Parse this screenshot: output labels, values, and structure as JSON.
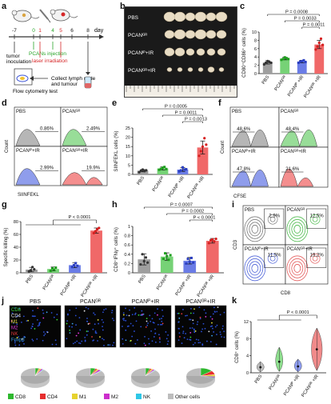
{
  "panel_labels": [
    "a",
    "b",
    "c",
    "d",
    "e",
    "f",
    "g",
    "h",
    "i",
    "j",
    "k"
  ],
  "panel_a": {
    "day_label": "day",
    "ticks": [
      "-7",
      "0",
      "1",
      "4",
      "5",
      "6",
      "8"
    ],
    "tumor_inoculation": "tumor\ninoculation",
    "pcans_injection": "PCANs injection",
    "laser_irradiation": "laser irradiation",
    "flow_test": "Flow cytometry test",
    "collect_text": "Collect lymph node\nand tumour",
    "colors": {
      "green": "#2aa52a",
      "red": "#d62728"
    }
  },
  "panel_b": {
    "rows": [
      "PBS",
      "PCANᴳᴿ",
      "PCANᴵᴾ+IR",
      "PCANᴳᴿ+IR"
    ]
  },
  "chart_data": [
    {
      "id": "c",
      "type": "bar",
      "ylabel": "CD80⁺CD86⁺ cells (%)",
      "ylim": [
        0,
        10
      ],
      "yticks": [
        0,
        2,
        4,
        6,
        8,
        10
      ],
      "categories": [
        "PBS",
        "PCANᴳᴿ",
        "PCANᴵᴾ +IR",
        "PCANᴳᴿ +IR"
      ],
      "values": [
        2.7,
        3.6,
        2.9,
        7.0
      ],
      "errors": [
        0.4,
        0.3,
        0.3,
        1.0
      ],
      "colors": [
        "#9e9e9e",
        "#76d276",
        "#6a7ce6",
        "#f06868"
      ],
      "points": [
        [
          2.2,
          2.6,
          3.0,
          2.8,
          2.6
        ],
        [
          3.3,
          3.5,
          3.9,
          3.7,
          3.5
        ],
        [
          2.6,
          2.9,
          3.0,
          3.2,
          2.8
        ],
        [
          5.8,
          6.5,
          7.4,
          8.4,
          6.9
        ]
      ],
      "pvalues": [
        {
          "text": "P = 0.0008",
          "from": 0,
          "to": 3
        },
        {
          "text": "P = 0.0033",
          "from": 1,
          "to": 3
        },
        {
          "text": "P = 0.0011",
          "from": 2,
          "to": 3
        }
      ]
    },
    {
      "id": "e",
      "type": "bar",
      "ylabel": "SIINFEKL cells (%)",
      "ylim": [
        0,
        25
      ],
      "yticks": [
        0,
        5,
        10,
        15,
        20,
        25
      ],
      "categories": [
        "PBS",
        "PCANᴳᴿ",
        "PCANᴵᴾ +IR",
        "PCANᴳᴿ +IR"
      ],
      "values": [
        2.0,
        3.2,
        2.6,
        14.5
      ],
      "errors": [
        0.6,
        0.8,
        1.0,
        3.5
      ],
      "colors": [
        "#9e9e9e",
        "#76d276",
        "#6a7ce6",
        "#f06868"
      ],
      "points": [
        [
          1.2,
          2.0,
          2.6,
          1.8,
          2.2
        ],
        [
          2.5,
          3.0,
          3.6,
          4.0,
          2.9
        ],
        [
          1.6,
          2.2,
          3.8,
          2.6,
          2.8
        ],
        [
          10.0,
          12.5,
          15.0,
          19.5,
          16.0
        ]
      ],
      "pvalues": [
        {
          "text": "P = 0.0005",
          "from": 0,
          "to": 3
        },
        {
          "text": "P = 0.0011",
          "from": 1,
          "to": 3
        },
        {
          "text": "P = 0.0013",
          "from": 2,
          "to": 3
        }
      ]
    },
    {
      "id": "g",
      "type": "bar",
      "ylabel": "Specific killing (%)",
      "ylim": [
        0,
        80
      ],
      "yticks": [
        0,
        20,
        40,
        60,
        80
      ],
      "categories": [
        "PBS",
        "PCANᴳᴿ",
        "PCANᴵᴾ +IR",
        "PCANᴳᴿ +IR"
      ],
      "values": [
        5.0,
        6.0,
        12.0,
        66.0
      ],
      "errors": [
        3.5,
        3.0,
        4.0,
        4.0
      ],
      "colors": [
        "#9e9e9e",
        "#76d276",
        "#6a7ce6",
        "#f06868"
      ],
      "points": [
        [
          2.0,
          4.0,
          9.0,
          5.5
        ],
        [
          3.0,
          7.0,
          5.0,
          8.0
        ],
        [
          9.0,
          12.0,
          15.0,
          11.0
        ],
        [
          62.0,
          65.0,
          68.0,
          70.0
        ]
      ],
      "pvalues": [
        {
          "text": "P < 0.0001",
          "from": 0,
          "to": 3,
          "group": true
        }
      ]
    },
    {
      "id": "h",
      "type": "bar",
      "ylabel": "CD8⁺IFNγ⁺ cells (%)",
      "ylim": [
        0,
        1.0
      ],
      "yticks": [
        0,
        0.2,
        0.4,
        0.6,
        0.8,
        1.0
      ],
      "categories": [
        "PBS",
        "PCANᴳᴿ",
        "PCANᴵᴾ +IR",
        "PCANᴳᴿ +IR"
      ],
      "values": [
        0.29,
        0.35,
        0.26,
        0.69
      ],
      "errors": [
        0.12,
        0.08,
        0.07,
        0.05
      ],
      "colors": [
        "#9e9e9e",
        "#76d276",
        "#6a7ce6",
        "#f06868"
      ],
      "points": [
        [
          0.18,
          0.4,
          0.25,
          0.33,
          0.22
        ],
        [
          0.3,
          0.42,
          0.36,
          0.28,
          0.38
        ],
        [
          0.2,
          0.3,
          0.24,
          0.32,
          0.22
        ],
        [
          0.64,
          0.7,
          0.72,
          0.68,
          0.73
        ]
      ],
      "pvalues": [
        {
          "text": "P = 0.0007",
          "from": 0,
          "to": 3
        },
        {
          "text": "P = 0.0002",
          "from": 1,
          "to": 3
        },
        {
          "text": "P < 0.0001",
          "from": 2,
          "to": 3
        }
      ]
    },
    {
      "id": "k",
      "type": "violin",
      "ylabel": "CD8⁺ cells (%)",
      "ylim": [
        0,
        12
      ],
      "yticks": [
        0,
        4,
        8,
        12
      ],
      "categories": [
        "PBS",
        "PCANᴳᴿ",
        "PCANᴵᴾ +IR",
        "PCANᴳᴿ +IR"
      ],
      "values": [
        1.3,
        2.6,
        1.5,
        5.5
      ],
      "ranges": [
        [
          0.2,
          2.6
        ],
        [
          0.3,
          6.0
        ],
        [
          0.2,
          3.2
        ],
        [
          0.5,
          10.5
        ]
      ],
      "colors": [
        "#bdbdbd",
        "#8fe08f",
        "#8d9cf0",
        "#f08a8a"
      ],
      "pvalues": [
        {
          "text": "P < 0.0001",
          "from": 0,
          "to": 3,
          "group": true
        }
      ]
    }
  ],
  "flow_d": {
    "xlabel": "SIINFEKL",
    "ylabel": "Count",
    "panels": [
      {
        "name": "PBS",
        "pct": "0.86%",
        "color": "#9e9e9e"
      },
      {
        "name": "PCANᴳᴿ",
        "pct": "2.49%",
        "color": "#76d276"
      },
      {
        "name": "PCANᴵᴾ+IR",
        "pct": "2.99%",
        "color": "#6a7ce6"
      },
      {
        "name": "PCANᴳᴿ+IR",
        "pct": "19.9%",
        "color": "#f06868"
      }
    ]
  },
  "flow_f": {
    "xlabel": "CFSE",
    "ylabel": "Count",
    "panels": [
      {
        "name": "PBS",
        "pct": "48.6%",
        "color": "#9e9e9e"
      },
      {
        "name": "PCANᴳᴿ",
        "pct": "48.4%",
        "color": "#76d276"
      },
      {
        "name": "PCANᴵᴾ+IR",
        "pct": "47.8%",
        "color": "#6a7ce6"
      },
      {
        "name": "PCANᴳᴿ+IR",
        "pct": "21.6%",
        "color": "#f06868"
      }
    ]
  },
  "flow_i": {
    "xlabel": "CD8",
    "ylabel": "CD3",
    "panels": [
      {
        "name": "PBS",
        "pct": "2.9%",
        "color": "#6b6b6b"
      },
      {
        "name": "PCANᴳᴿ",
        "pct": "12.5%",
        "color": "#3bb33b"
      },
      {
        "name": "PCANᴵᴾ+IR",
        "pct": "11.5%",
        "color": "#3a52d4"
      },
      {
        "name": "PCANᴳᴿ+IR",
        "pct": "19.2%",
        "color": "#e04a4a"
      }
    ]
  },
  "panel_j": {
    "titles": [
      "PBS",
      "PCANᴳᴿ",
      "PCANᴵᴾ+IR",
      "PCANᴳᴿ+IR"
    ],
    "channels": [
      {
        "name": "CD8",
        "color": "#39d639"
      },
      {
        "name": "CD4",
        "color": "#e8e8e8"
      },
      {
        "name": "M1",
        "color": "#e8e23a"
      },
      {
        "name": "M2",
        "color": "#e83ae0"
      },
      {
        "name": "NK",
        "color": "#e83a3a"
      },
      {
        "name": "Foxp3",
        "color": "#3aa0e8"
      }
    ],
    "legend": [
      {
        "name": "CD8",
        "color": "#2eb82e"
      },
      {
        "name": "CD4",
        "color": "#e62e2e"
      },
      {
        "name": "M1",
        "color": "#e6d22e"
      },
      {
        "name": "M2",
        "color": "#cc2ecc"
      },
      {
        "name": "NK",
        "color": "#2ec7e6"
      },
      {
        "name": "Other cells",
        "color": "#bdbdbd"
      }
    ],
    "pies": [
      [
        4,
        1,
        2,
        2,
        1,
        90
      ],
      [
        6,
        2,
        2,
        3,
        1,
        86
      ],
      [
        5,
        2,
        2,
        2,
        1,
        88
      ],
      [
        14,
        8,
        4,
        3,
        2,
        69
      ]
    ]
  }
}
